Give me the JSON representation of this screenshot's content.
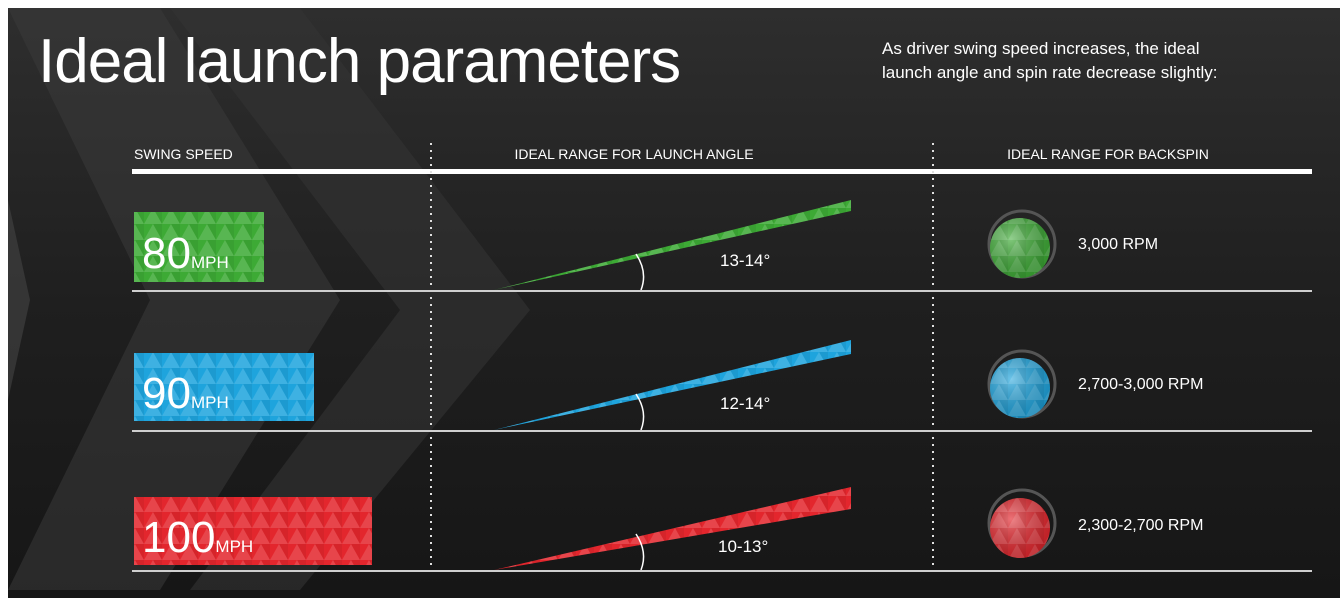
{
  "header": {
    "title": "Ideal launch parameters",
    "subtitle_line1": "As driver swing speed increases, the ideal",
    "subtitle_line2": "launch angle and spin rate decrease slightly:"
  },
  "columns": {
    "swing_speed": "SWING SPEED",
    "launch_angle": "IDEAL RANGE FOR LAUNCH ANGLE",
    "backspin": "IDEAL RANGE FOR BACKSPIN"
  },
  "rows": [
    {
      "speed": "80",
      "unit": "MPH",
      "angle": "13-14°",
      "spin": "3,000 RPM",
      "color": "#3daa35"
    },
    {
      "speed": "90",
      "unit": "MPH",
      "angle": "12-14°",
      "spin": "2,700-3,000 RPM",
      "color": "#1ea4dd"
    },
    {
      "speed": "100",
      "unit": "MPH",
      "angle": "10-13°",
      "spin": "2,300-2,700 RPM",
      "color": "#e3262d"
    }
  ],
  "colors": {
    "background": "#1b1b1b",
    "rule": "#cfcfcf",
    "text": "#ffffff"
  }
}
